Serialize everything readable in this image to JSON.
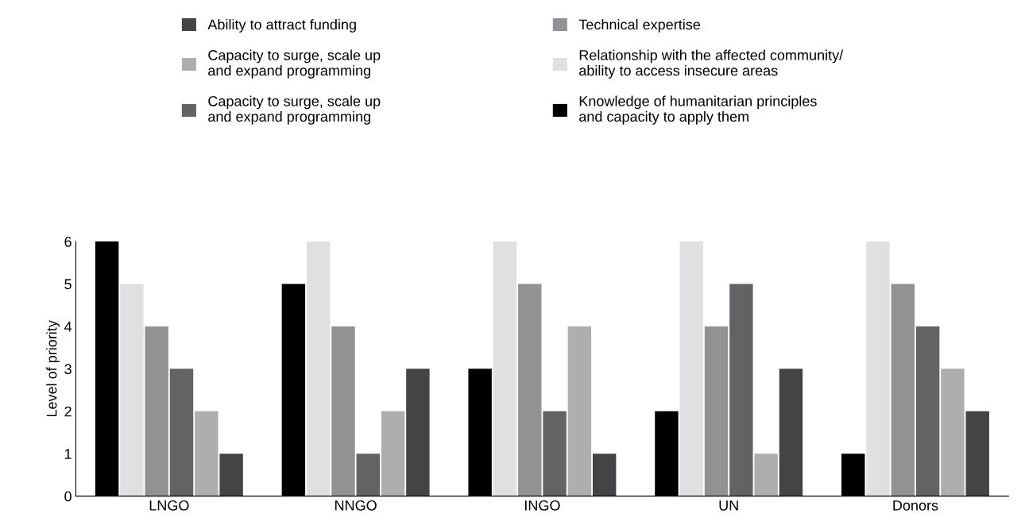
{
  "chart_data": {
    "type": "bar",
    "ylabel": "Level of priority",
    "categories": [
      "LNGO",
      "NNGO",
      "INGO",
      "UN",
      "Donors"
    ],
    "series": [
      {
        "name": "Knowledge of humanitarian principles\nand capacity to apply them",
        "color": "#000000",
        "values": [
          6,
          5,
          3,
          2,
          1
        ]
      },
      {
        "name": "Relationship with the affected community/\nability to access insecure areas",
        "color": "#e0e0e2",
        "values": [
          5,
          6,
          6,
          6,
          6
        ]
      },
      {
        "name": "Technical expertise",
        "color": "#929295",
        "values": [
          4,
          4,
          5,
          4,
          5
        ]
      },
      {
        "name": "Capacity to surge, scale up\nand expand programming",
        "color": "#636365",
        "values": [
          3,
          1,
          2,
          5,
          4
        ]
      },
      {
        "name": "Capacity to surge, scale up\nand expand programming",
        "color": "#aeaeb0",
        "values": [
          2,
          2,
          4,
          1,
          3
        ]
      },
      {
        "name": "Ability to attract funding",
        "color": "#444446",
        "values": [
          1,
          3,
          1,
          3,
          2
        ]
      }
    ],
    "ylim": [
      0,
      6
    ],
    "yticks": [
      0,
      1,
      2,
      3,
      4,
      5,
      6
    ],
    "grid": false,
    "legend": "top"
  }
}
